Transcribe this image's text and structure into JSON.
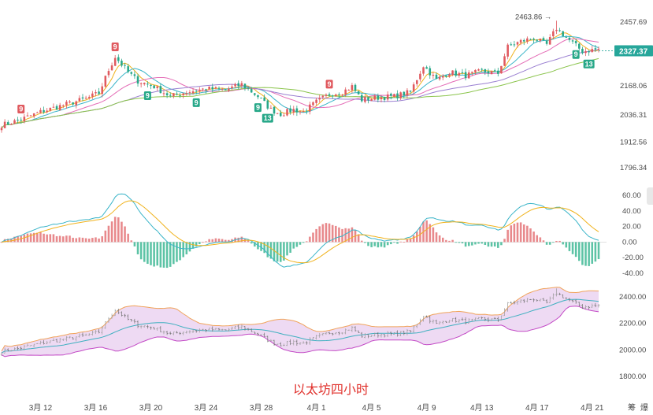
{
  "chart_data": {
    "type": "candlestick",
    "caption": "以太坊四小时",
    "corner_labels": [
      "筹",
      "爆"
    ],
    "x_axis": {
      "labels": [
        "3月 12",
        "3月 16",
        "3月 20",
        "3月 24",
        "3月 28",
        "4月 1",
        "4月 5",
        "4月 9",
        "4月 13",
        "4月 17",
        "4月 21"
      ]
    },
    "colors": {
      "up": "#e05a5f",
      "down": "#28a889",
      "price_tag": "#26a69a",
      "ma": [
        "#f0b21c",
        "#39b4c8",
        "#e46cb6",
        "#9a7fd1",
        "#8ac44b"
      ],
      "band_fill": "#ecd6f2",
      "band_upper": "#f0a35a",
      "band_lower": "#c34ac6",
      "band_mid": "#3fb0c0"
    },
    "price_panel": {
      "y_ticks": [
        2457.69,
        2327.37,
        2168.06,
        2036.31,
        1912.56,
        1796.34
      ],
      "y_tick_labels": [
        "2457.69",
        "2327.37",
        "2168.06",
        "2036.31",
        "1912.56",
        "1796.34"
      ],
      "last_price": "2327.37",
      "peak_annotation": "2463.86",
      "anchors": [
        [
          0,
          1990
        ],
        [
          5,
          2010
        ],
        [
          12,
          2050
        ],
        [
          20,
          2085
        ],
        [
          26,
          2110
        ],
        [
          30,
          2135
        ],
        [
          33,
          2240
        ],
        [
          35,
          2300
        ],
        [
          39,
          2230
        ],
        [
          42,
          2190
        ],
        [
          47,
          2165
        ],
        [
          52,
          2120
        ],
        [
          57,
          2140
        ],
        [
          63,
          2155
        ],
        [
          69,
          2150
        ],
        [
          74,
          2175
        ],
        [
          79,
          2120
        ],
        [
          83,
          2060
        ],
        [
          86,
          2040
        ],
        [
          90,
          2060
        ],
        [
          93,
          2050
        ],
        [
          97,
          2095
        ],
        [
          101,
          2130
        ],
        [
          105,
          2140
        ],
        [
          108,
          2165
        ],
        [
          111,
          2105
        ],
        [
          116,
          2115
        ],
        [
          121,
          2120
        ],
        [
          126,
          2140
        ],
        [
          130,
          2260
        ],
        [
          134,
          2195
        ],
        [
          138,
          2230
        ],
        [
          143,
          2215
        ],
        [
          148,
          2235
        ],
        [
          153,
          2225
        ],
        [
          156,
          2345
        ],
        [
          160,
          2370
        ],
        [
          164,
          2385
        ],
        [
          168,
          2355
        ],
        [
          171,
          2430
        ],
        [
          175,
          2375
        ],
        [
          179,
          2325
        ],
        [
          184,
          2335
        ]
      ],
      "markers": [
        {
          "i": 6,
          "text": "9",
          "pos": "above"
        },
        {
          "i": 35,
          "text": "9",
          "pos": "above"
        },
        {
          "i": 45,
          "text": "9",
          "pos": "below"
        },
        {
          "i": 60,
          "text": "9",
          "pos": "below"
        },
        {
          "i": 79,
          "text": "9",
          "pos": "below"
        },
        {
          "i": 82,
          "text": "13",
          "pos": "below"
        },
        {
          "i": 101,
          "text": "9",
          "pos": "above"
        },
        {
          "i": 177,
          "text": "9",
          "pos": "below"
        },
        {
          "i": 181,
          "text": "13",
          "pos": "below"
        }
      ]
    },
    "macd_panel": {
      "y_ticks": [
        60,
        40,
        20,
        0,
        -20,
        -40
      ],
      "y_tick_labels": [
        "60.00",
        "40.00",
        "20.00",
        "0.00",
        "-20.00",
        "-40.00"
      ]
    },
    "band_panel": {
      "y_ticks": [
        2400,
        2200,
        2000,
        1800
      ],
      "y_tick_labels": [
        "2400.00",
        "2200.00",
        "2000.00",
        "1800.00"
      ]
    }
  }
}
